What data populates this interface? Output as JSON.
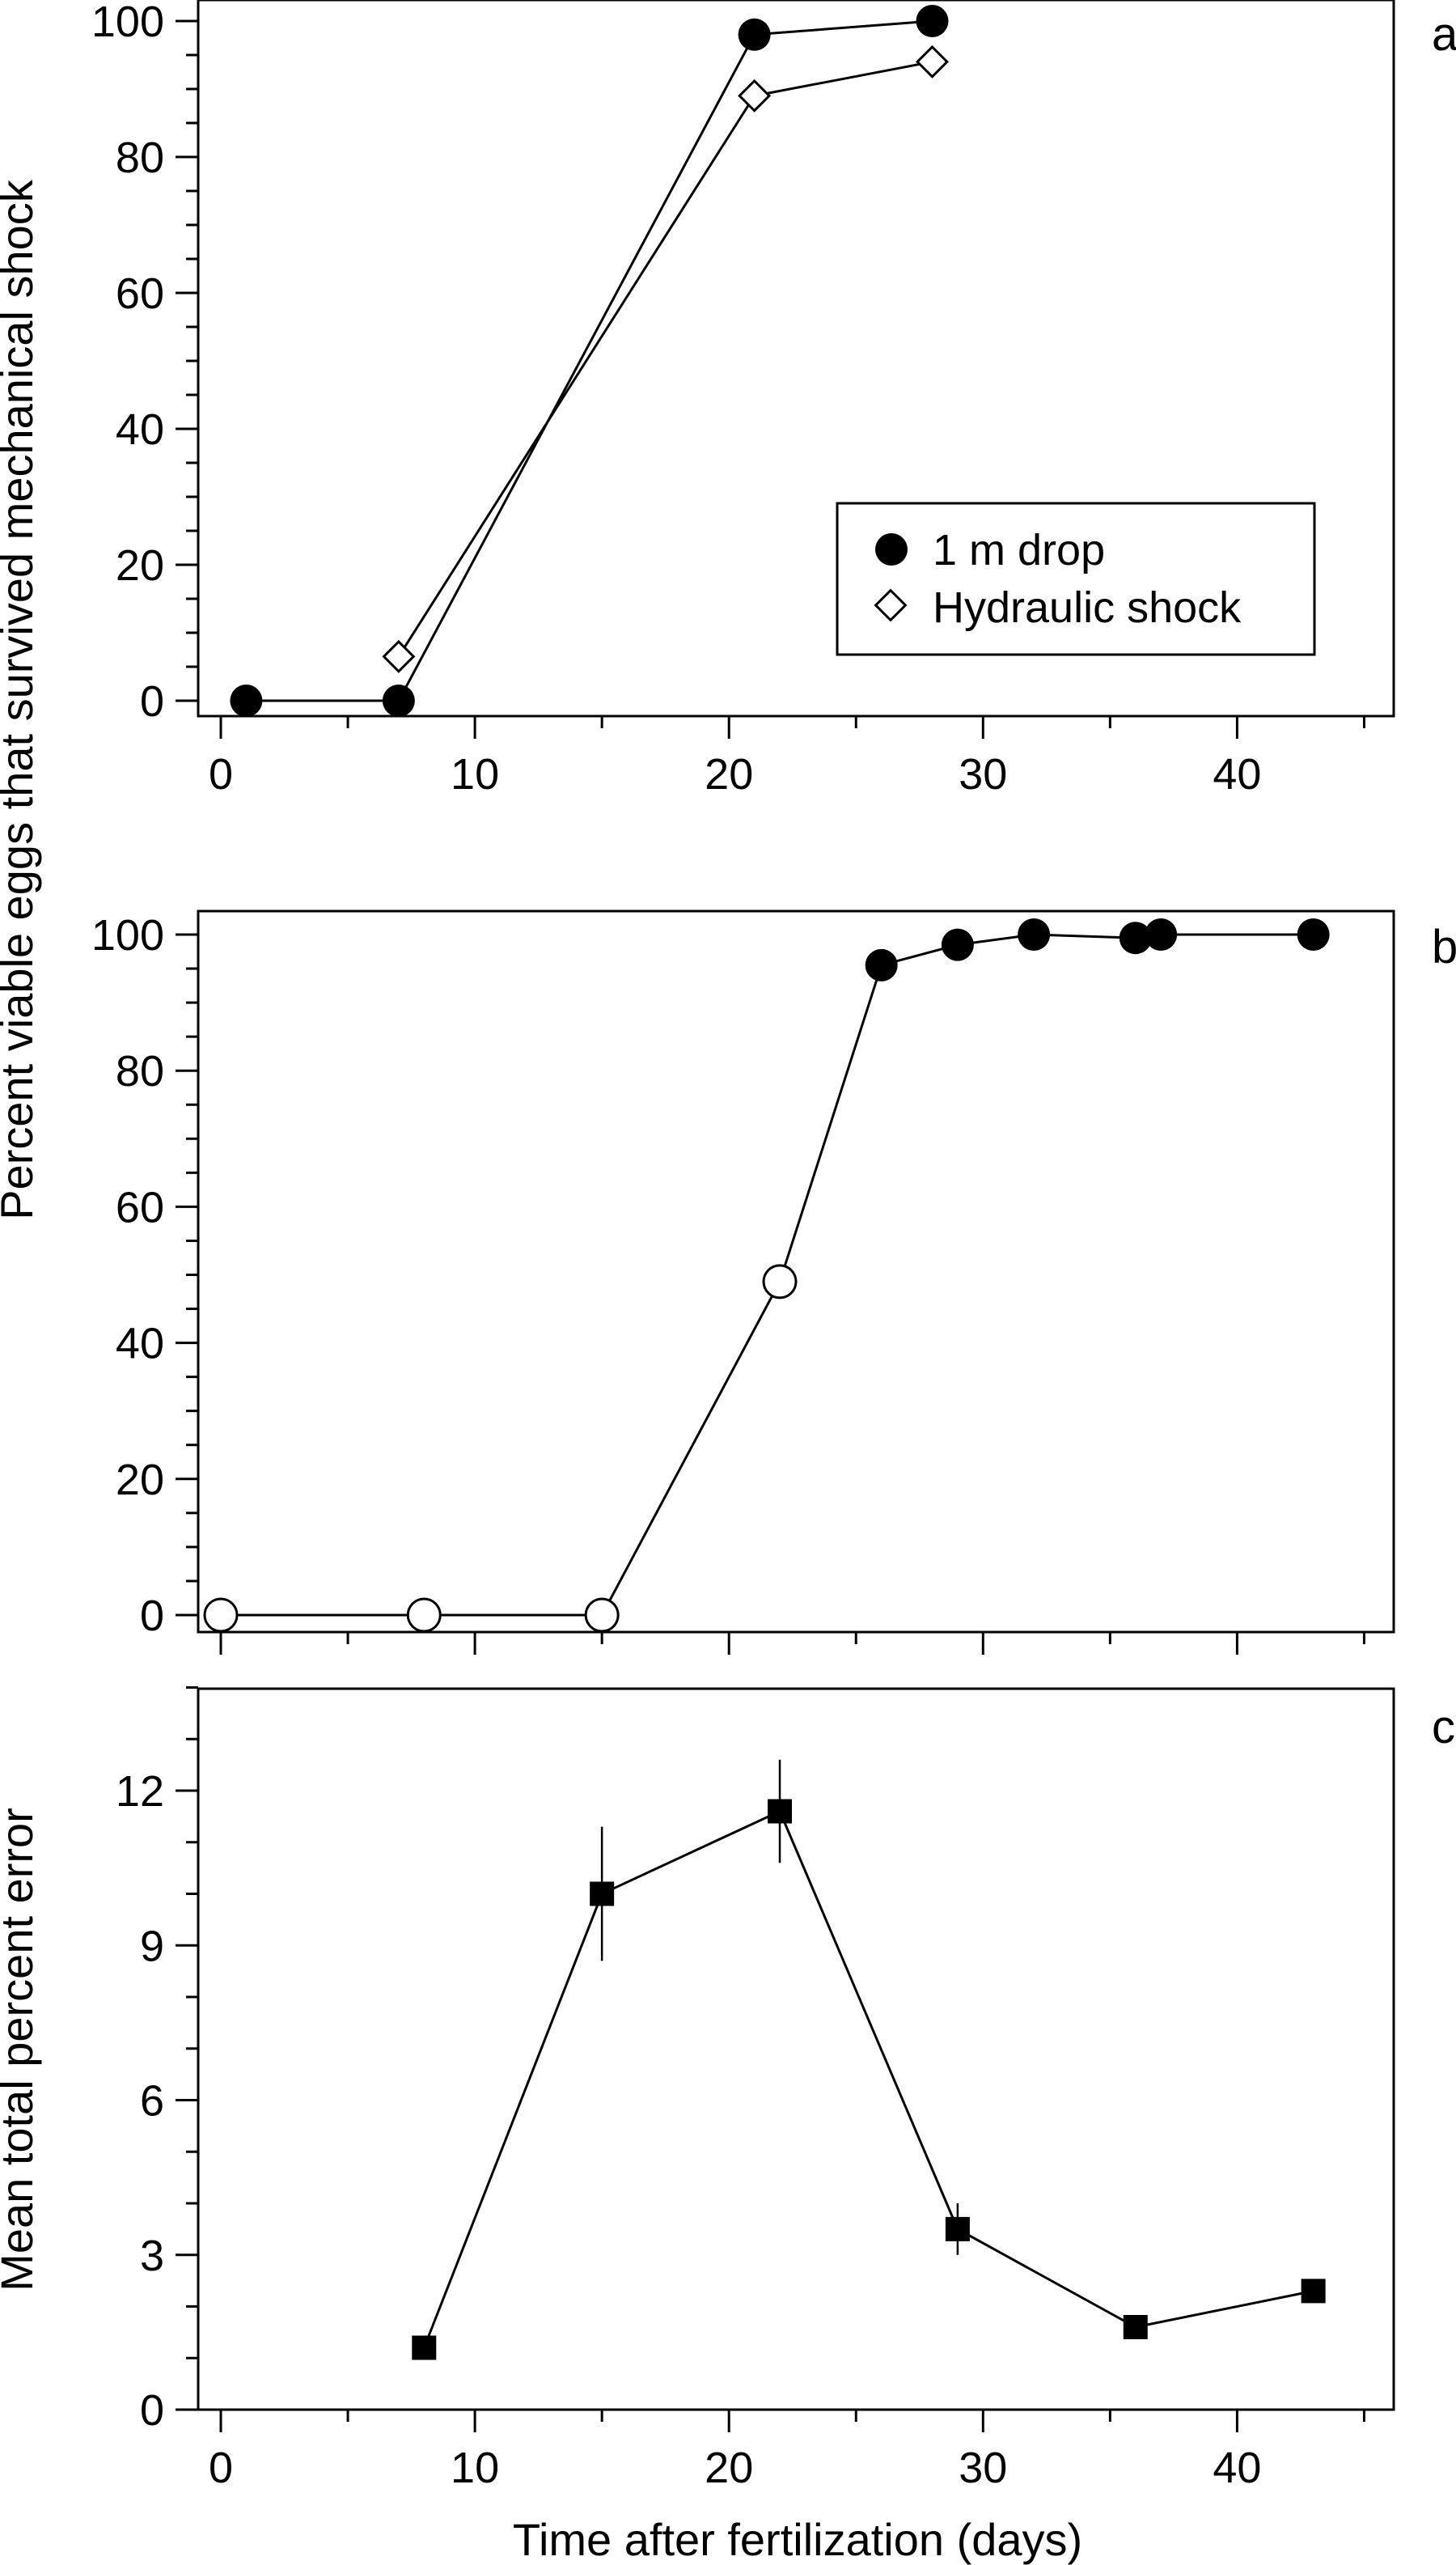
{
  "figure": {
    "shared_ylabel": "Percent viable eggs that survived mechanical shock",
    "xlabel": "Time after fertilization (days)"
  },
  "chart_data": [
    {
      "panel_label": "a",
      "type": "line",
      "xlim": [
        -2,
        46
      ],
      "ylim": [
        -2,
        103
      ],
      "xticks": [
        0,
        10,
        20,
        30,
        40
      ],
      "yticks": [
        0,
        20,
        40,
        60,
        80,
        100
      ],
      "legend_position": "lower-right",
      "series": [
        {
          "name": "1 m drop",
          "marker": "filled-circle",
          "x": [
            1,
            7,
            21,
            28
          ],
          "y": [
            0,
            0,
            98,
            100
          ]
        },
        {
          "name": "Hydraulic shock",
          "marker": "open-diamond",
          "x": [
            7,
            21,
            28
          ],
          "y": [
            6.5,
            89,
            94
          ]
        }
      ]
    },
    {
      "panel_label": "b",
      "type": "line",
      "xlim": [
        -2,
        46
      ],
      "ylim": [
        -2,
        103
      ],
      "yticks": [
        0,
        20,
        40,
        60,
        80,
        100
      ],
      "series": [
        {
          "marker": "open-circle",
          "x": [
            0,
            8,
            15,
            22
          ],
          "y": [
            0,
            0,
            0,
            49
          ]
        },
        {
          "marker": "filled-circle",
          "x": [
            26,
            29,
            32,
            36,
            37,
            43
          ],
          "y": [
            95.5,
            98.5,
            100,
            99.5,
            100,
            100
          ]
        }
      ],
      "line_x": [
        0,
        8,
        15,
        22,
        26,
        29,
        32,
        36,
        37,
        43
      ],
      "line_y": [
        0,
        0,
        0,
        49,
        95.5,
        98.5,
        100,
        99.5,
        100,
        100
      ]
    },
    {
      "panel_label": "c",
      "type": "line",
      "ylabel": "Mean total percent error",
      "xlim": [
        -2,
        46
      ],
      "ylim": [
        0,
        14
      ],
      "xticks": [
        0,
        10,
        20,
        30,
        40
      ],
      "yticks": [
        0,
        3,
        6,
        9,
        12
      ],
      "series": [
        {
          "marker": "filled-square",
          "x": [
            8,
            15,
            22,
            29,
            36,
            43
          ],
          "y": [
            1.2,
            10.0,
            11.6,
            3.5,
            1.6,
            2.3
          ],
          "err": [
            0,
            1.3,
            1.0,
            0.5,
            0,
            0
          ]
        }
      ]
    }
  ]
}
